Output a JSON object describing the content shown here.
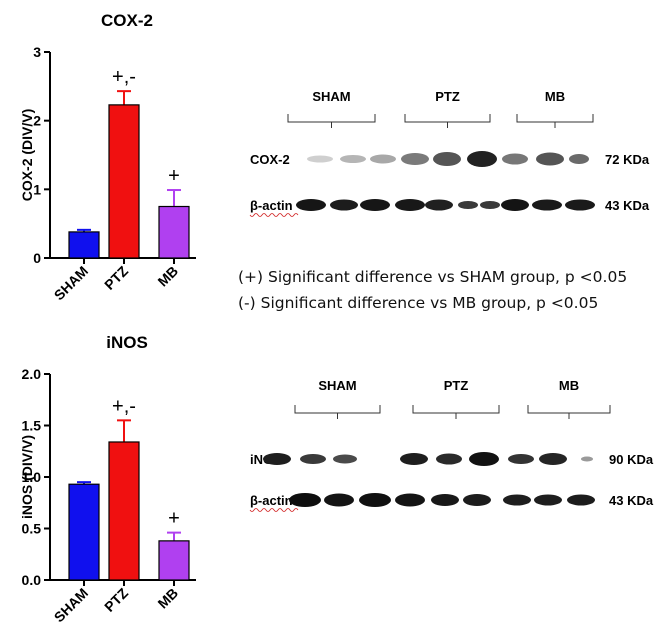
{
  "chart_data": [
    {
      "type": "bar",
      "title": "COX-2",
      "ylabel": "COX-2 (DIV/V)",
      "xlabel": "",
      "categories": [
        "SHAM",
        "PTZ",
        "MB"
      ],
      "values": [
        0.38,
        2.23,
        0.75
      ],
      "errors": [
        0.03,
        0.2,
        0.24
      ],
      "annotations": [
        "",
        "+,-",
        "+"
      ],
      "colors": [
        "#1010ee",
        "#f01010",
        "#b040f0"
      ],
      "ylim": [
        0,
        3
      ],
      "yticks": [
        0,
        1,
        2,
        3
      ],
      "ytick_labels": [
        "0",
        "1",
        "2",
        "3"
      ]
    },
    {
      "type": "bar",
      "title": "iNOS",
      "ylabel": "iNOS (DIV/V)",
      "xlabel": "",
      "categories": [
        "SHAM",
        "PTZ",
        "MB"
      ],
      "values": [
        0.93,
        1.34,
        0.38
      ],
      "errors": [
        0.02,
        0.21,
        0.08
      ],
      "annotations": [
        "",
        "+,-",
        "+"
      ],
      "colors": [
        "#1010ee",
        "#f01010",
        "#b040f0"
      ],
      "ylim": [
        0,
        2.0
      ],
      "yticks": [
        0,
        0.5,
        1.0,
        1.5,
        2.0
      ],
      "ytick_labels": [
        "0.0",
        "0.5",
        "1.0",
        "1.5",
        "2.0"
      ]
    }
  ],
  "blots": [
    {
      "groups": [
        "SHAM",
        "PTZ",
        "MB"
      ],
      "rows": [
        {
          "label": "COX-2",
          "size": "72 KDa"
        },
        {
          "label": "β-actin",
          "size": "43 KDa"
        }
      ]
    },
    {
      "groups": [
        "SHAM",
        "PTZ",
        "MB"
      ],
      "rows": [
        {
          "label": "iNOS",
          "size": "90 KDa"
        },
        {
          "label": "β-actin",
          "size": "43 KDa"
        }
      ]
    }
  ],
  "legend": [
    "(+) Significant difference vs SHAM group, p <0.05",
    "(-) Significant difference vs MB group, p <0.05"
  ]
}
